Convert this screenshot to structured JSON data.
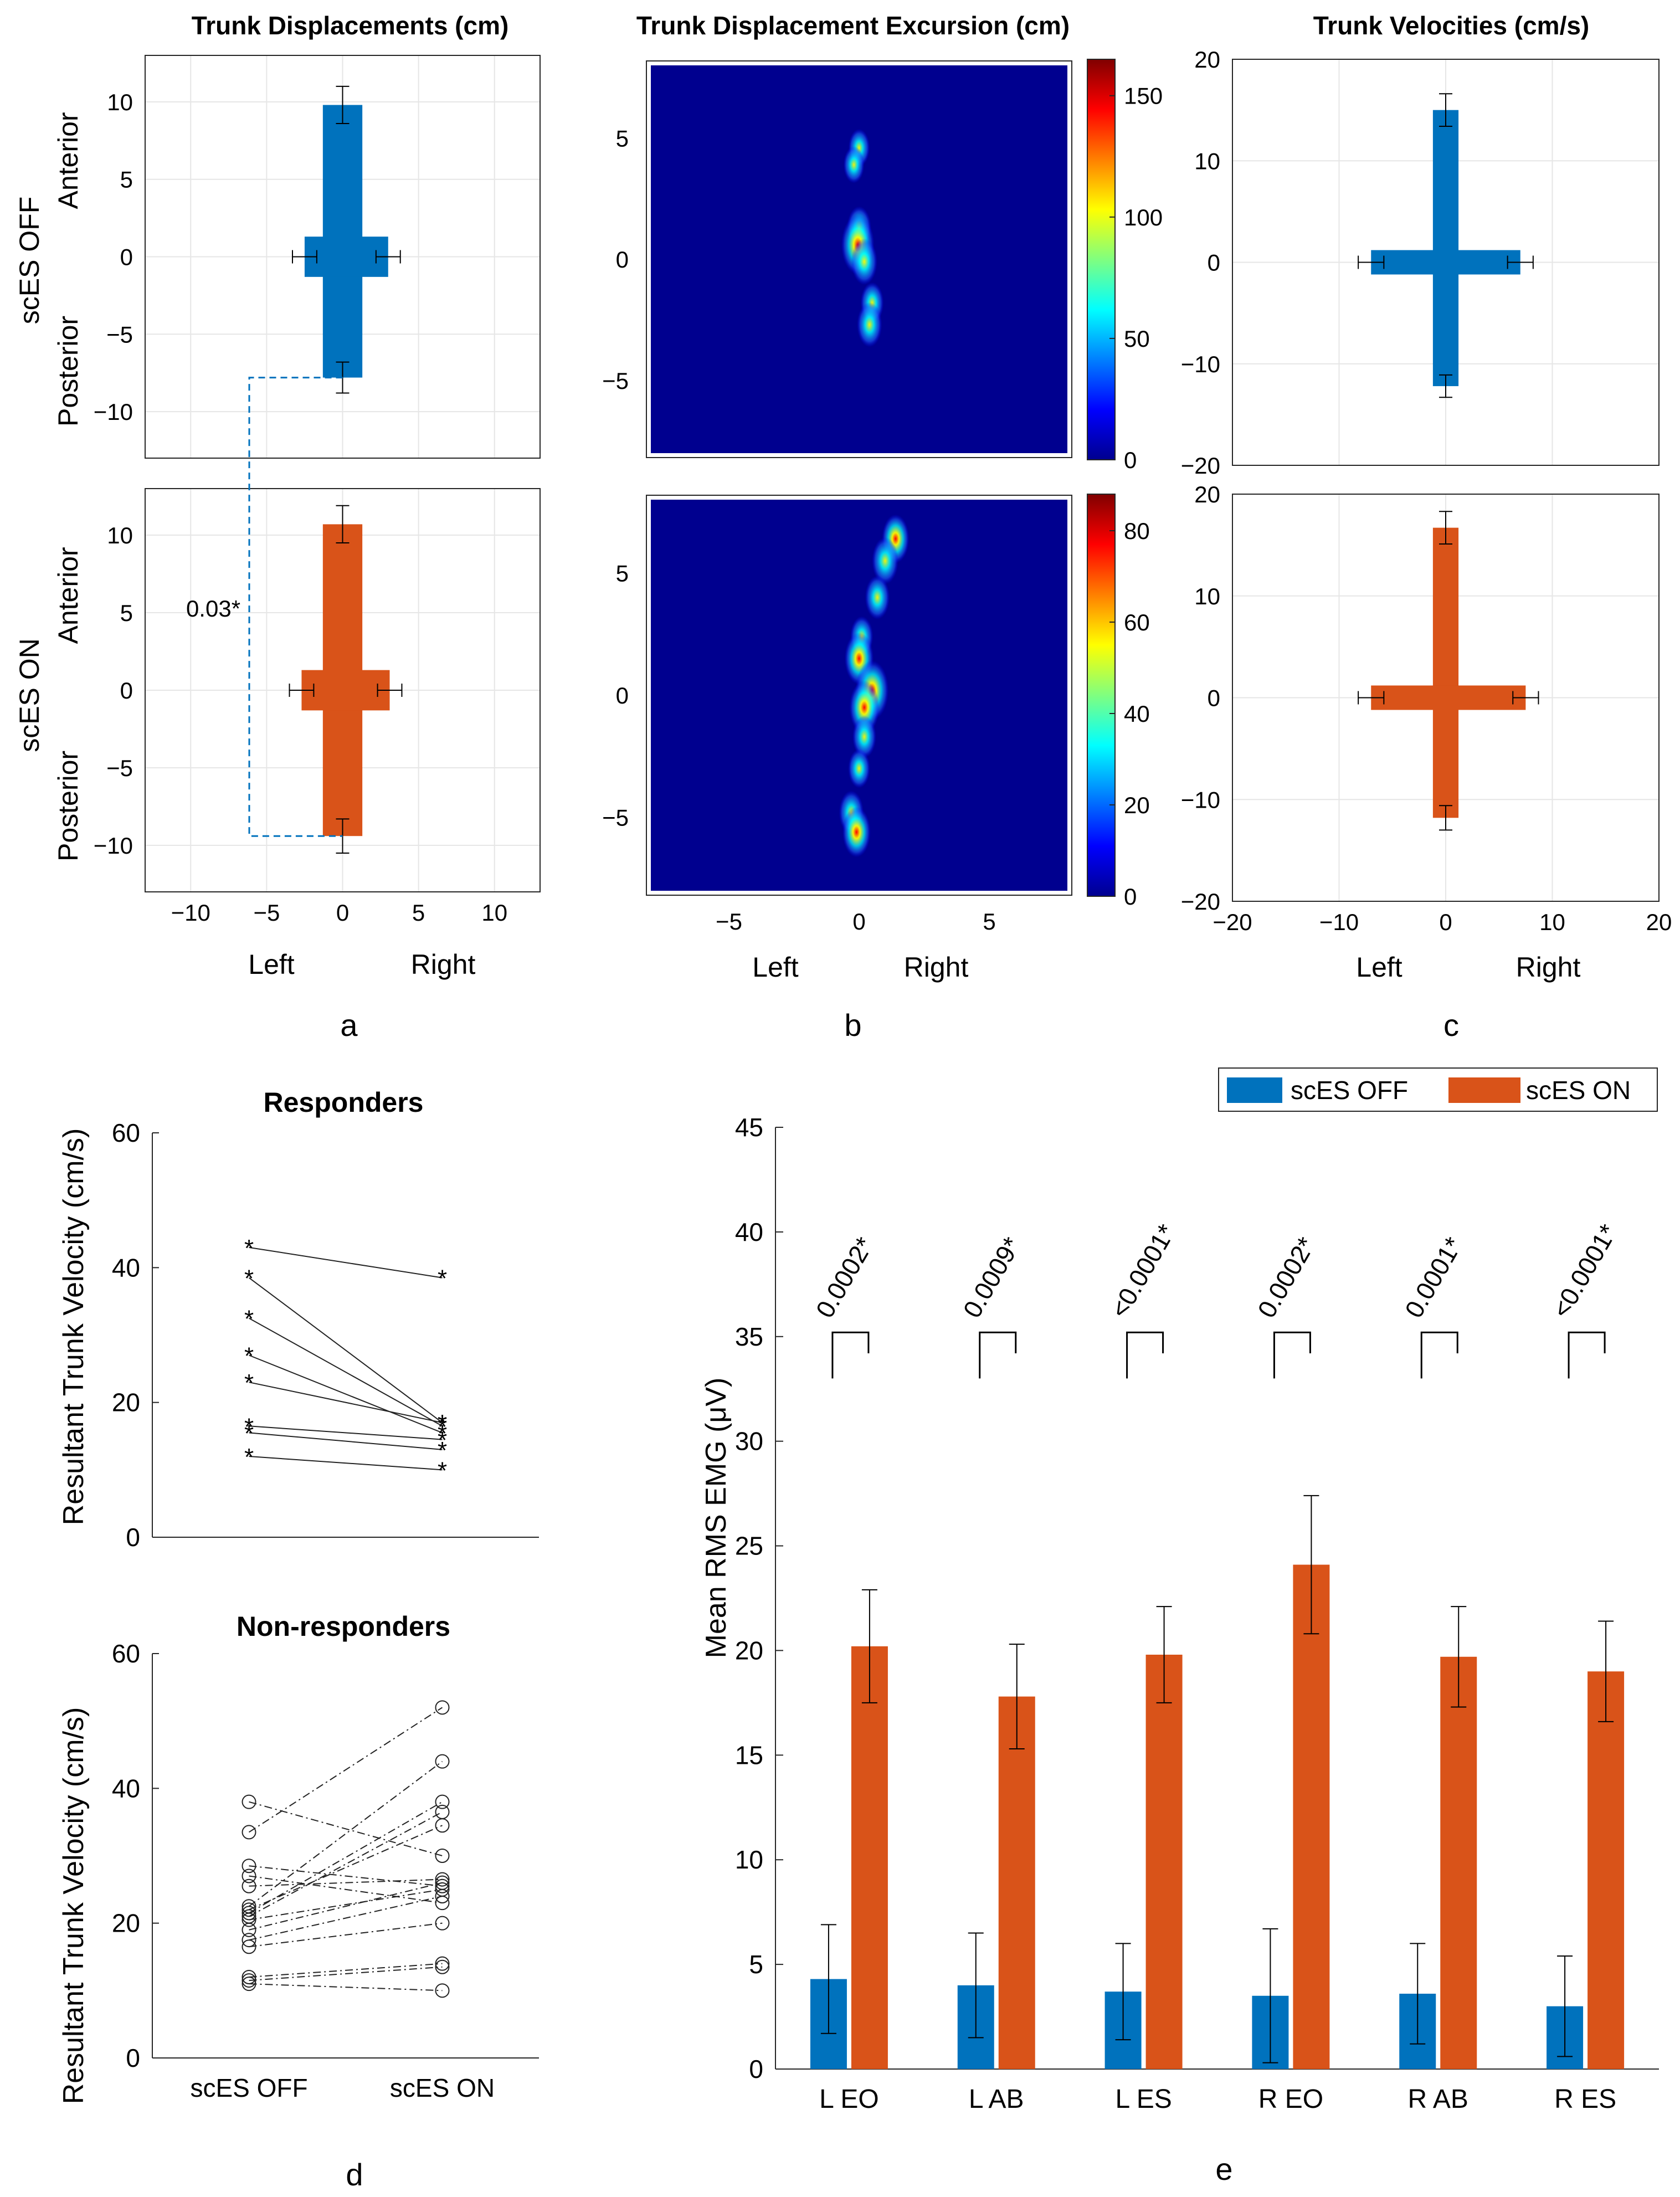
{
  "colors": {
    "off": "#0072BD",
    "on": "#D95319",
    "axis": "#262626",
    "grid": "#E6E6E6",
    "heatmap_bg": "#00008F",
    "dashed_link": "#0072BD"
  },
  "panels": {
    "a": {
      "label": "a",
      "title": "Trunk Displacements (cm)",
      "xlabel_left": "Left",
      "xlabel_right": "Right",
      "x_ticks": [
        "−10",
        "−5",
        "0",
        "5",
        "10"
      ],
      "y_ticks": [
        "10",
        "5",
        "0",
        "−5",
        "−10"
      ],
      "rows": [
        {
          "group": "scES OFF",
          "anterior": "Anterior",
          "posterior": "Posterior"
        },
        {
          "group": "scES ON",
          "anterior": "Anterior",
          "posterior": "Posterior"
        }
      ],
      "significance": "0.03*"
    },
    "b": {
      "label": "b",
      "title": "Trunk Displacement Excursion (cm)",
      "xlabel_left": "Left",
      "xlabel_right": "Right",
      "x_ticks": [
        "−5",
        "0",
        "5"
      ],
      "y_ticks": [
        "5",
        "0",
        "−5"
      ],
      "colorbar_top_ticks": [
        "150",
        "100",
        "50",
        "0"
      ],
      "colorbar_bottom_ticks": [
        "80",
        "60",
        "40",
        "20",
        "0"
      ]
    },
    "c": {
      "label": "c",
      "title": "Trunk Velocities (cm/s)",
      "xlabel_left": "Left",
      "xlabel_right": "Right",
      "x_ticks": [
        "−20",
        "−10",
        "0",
        "10",
        "20"
      ],
      "y_ticks": [
        "20",
        "10",
        "0",
        "−10",
        "−20"
      ]
    },
    "d": {
      "label": "d",
      "title_top": "Responders",
      "title_bottom": "Non-responders",
      "ylabel": "Resultant Trunk Velocity (cm/s)",
      "y_ticks": [
        "60",
        "40",
        "20",
        "0"
      ],
      "x_ticks": [
        "scES OFF",
        "scES ON"
      ]
    },
    "e": {
      "label": "e",
      "ylabel": "Mean RMS EMG (μV)",
      "legend": [
        "scES OFF",
        "scES ON"
      ],
      "y_ticks": [
        "45",
        "40",
        "35",
        "30",
        "25",
        "20",
        "15",
        "10",
        "5",
        "0"
      ],
      "p_values": [
        "0.0002*",
        "0.0009*",
        "<0.0001*",
        "0.0002*",
        "0.0001*",
        "<0.0001*"
      ]
    }
  },
  "chart_data": [
    {
      "panel": "a",
      "type": "bar",
      "title": "Trunk Displacements (cm)",
      "xlim": [
        -13,
        13
      ],
      "ylim": [
        -13,
        13
      ],
      "series": [
        {
          "name": "scES OFF",
          "anterior": 9.8,
          "anterior_err": 1.2,
          "posterior": -7.8,
          "posterior_err": 1.0,
          "left": -2.5,
          "left_err": 0.8,
          "right": 3.0,
          "right_err": 0.8
        },
        {
          "name": "scES ON",
          "anterior": 10.7,
          "anterior_err": 1.2,
          "posterior": -9.4,
          "posterior_err": 1.1,
          "left": -2.7,
          "left_err": 0.8,
          "right": 3.1,
          "right_err": 0.8
        }
      ],
      "significance": "0.03*"
    },
    {
      "panel": "b",
      "type": "heatmap",
      "title": "Trunk Displacement Excursion (cm)",
      "xlim": [
        -8,
        8
      ],
      "ylim": [
        -8,
        8
      ],
      "maps": [
        {
          "row": "scES OFF",
          "clim": [
            0,
            165
          ],
          "hotspots": [
            [
              0.0,
              4.6,
              40
            ],
            [
              -0.2,
              3.9,
              35
            ],
            [
              0.0,
              1.3,
              70
            ],
            [
              -0.05,
              0.6,
              165
            ],
            [
              0.2,
              -0.1,
              90
            ],
            [
              0.5,
              -1.8,
              60
            ],
            [
              0.4,
              -2.7,
              80
            ]
          ]
        },
        {
          "row": "scES ON",
          "clim": [
            0,
            88
          ],
          "hotspots": [
            [
              1.4,
              6.4,
              55
            ],
            [
              1.0,
              5.5,
              50
            ],
            [
              0.7,
              4.0,
              40
            ],
            [
              0.1,
              2.4,
              30
            ],
            [
              0.0,
              1.5,
              65
            ],
            [
              0.5,
              0.2,
              88
            ],
            [
              0.2,
              -0.5,
              70
            ],
            [
              0.2,
              -1.7,
              35
            ],
            [
              0.0,
              -3.0,
              25
            ],
            [
              -0.3,
              -4.8,
              40
            ],
            [
              -0.1,
              -5.6,
              60
            ]
          ]
        }
      ]
    },
    {
      "panel": "c",
      "type": "bar",
      "title": "Trunk Velocities (cm/s)",
      "xlim": [
        -20,
        20
      ],
      "ylim": [
        -20,
        20
      ],
      "series": [
        {
          "name": "scES OFF",
          "anterior": 15.0,
          "anterior_err": 1.6,
          "posterior": -12.2,
          "posterior_err": 1.1,
          "left": -7.0,
          "left_err": 1.2,
          "right": 7.0,
          "right_err": 1.2
        },
        {
          "name": "scES ON",
          "anterior": 16.7,
          "anterior_err": 1.6,
          "posterior": -11.8,
          "posterior_err": 1.2,
          "left": -7.0,
          "left_err": 1.2,
          "right": 7.5,
          "right_err": 1.2
        }
      ]
    },
    {
      "panel": "d",
      "type": "line",
      "title": "Responders",
      "ylabel": "Resultant Trunk Velocity (cm/s)",
      "categories": [
        "scES OFF",
        "scES ON"
      ],
      "ylim": [
        0,
        60
      ],
      "pairs": [
        [
          43,
          38.5
        ],
        [
          38.5,
          17
        ],
        [
          32.5,
          16.5
        ],
        [
          27,
          15.5
        ],
        [
          23,
          17
        ],
        [
          16.5,
          14.5
        ],
        [
          15.5,
          13
        ],
        [
          12,
          10
        ]
      ]
    },
    {
      "panel": "d",
      "type": "line",
      "title": "Non-responders",
      "ylabel": "Resultant Trunk Velocity (cm/s)",
      "categories": [
        "scES OFF",
        "scES ON"
      ],
      "ylim": [
        0,
        60
      ],
      "pairs": [
        [
          38,
          30
        ],
        [
          33.5,
          52
        ],
        [
          28.5,
          25.5
        ],
        [
          27,
          23
        ],
        [
          25.5,
          26.5
        ],
        [
          22.5,
          44
        ],
        [
          22,
          34.5
        ],
        [
          21.5,
          38
        ],
        [
          21,
          36.5
        ],
        [
          20.5,
          25
        ],
        [
          19,
          26
        ],
        [
          17.5,
          24
        ],
        [
          16.5,
          20
        ],
        [
          12,
          14
        ],
        [
          11.5,
          13.5
        ],
        [
          11,
          10
        ]
      ]
    },
    {
      "panel": "e",
      "type": "bar",
      "ylabel": "Mean RMS EMG (μV)",
      "ylim": [
        0,
        45
      ],
      "categories": [
        "L EO",
        "L AB",
        "L ES",
        "R EO",
        "R AB",
        "R ES"
      ],
      "series": [
        {
          "name": "scES OFF",
          "values": [
            4.3,
            4.0,
            3.7,
            3.5,
            3.6,
            3.0
          ],
          "errors": [
            2.6,
            2.5,
            2.3,
            3.2,
            2.4,
            2.4
          ]
        },
        {
          "name": "scES ON",
          "values": [
            20.2,
            17.8,
            19.8,
            24.1,
            19.7,
            19.0
          ],
          "errors": [
            2.7,
            2.5,
            2.3,
            3.3,
            2.4,
            2.4
          ]
        }
      ],
      "p_values": [
        "0.0002*",
        "0.0009*",
        "<0.0001*",
        "0.0002*",
        "0.0001*",
        "<0.0001*"
      ]
    }
  ]
}
